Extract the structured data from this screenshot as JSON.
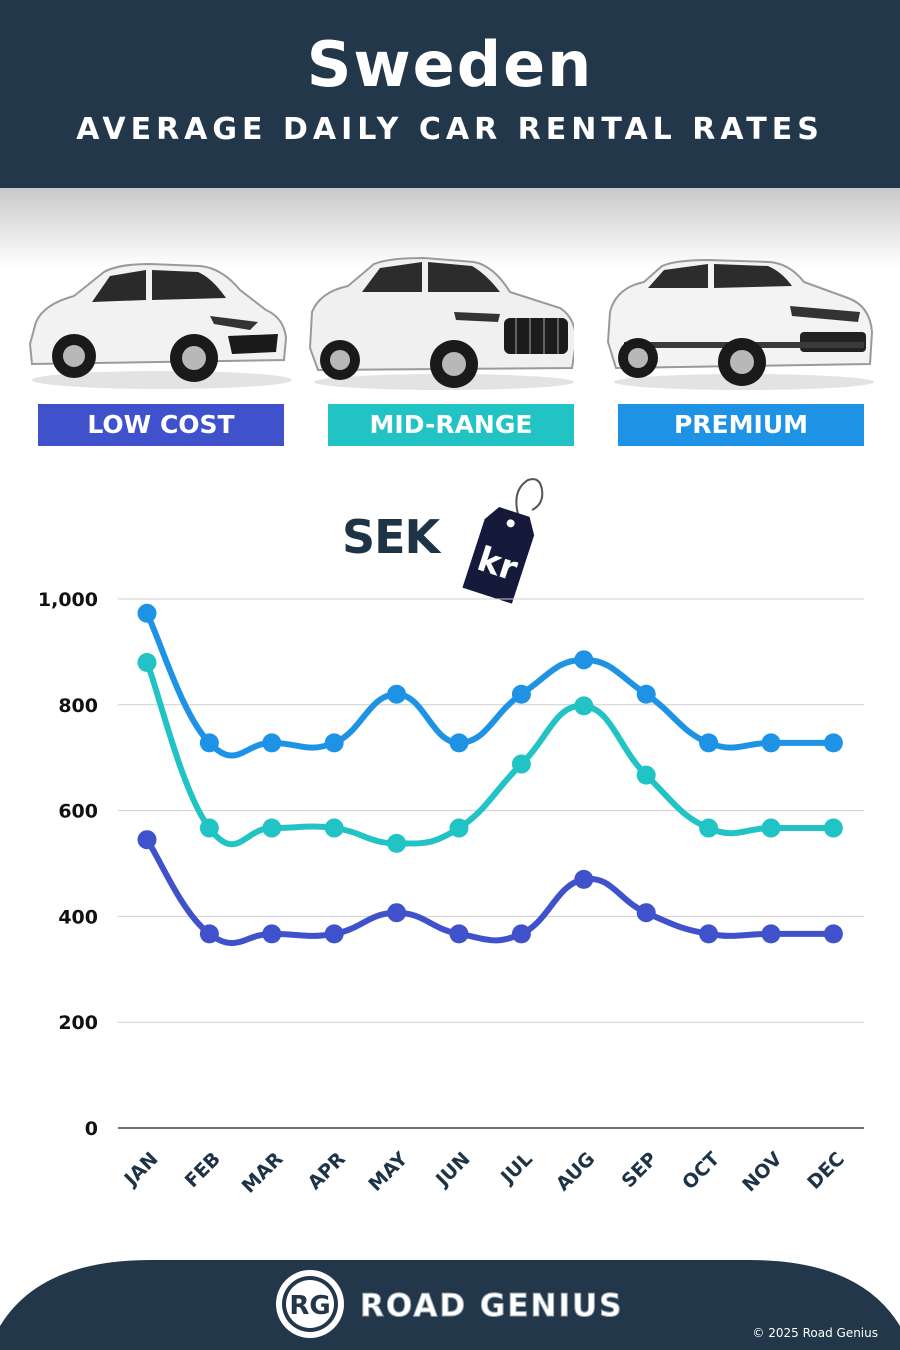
{
  "header": {
    "title": "Sweden",
    "subtitle": "AVERAGE DAILY CAR RENTAL RATES"
  },
  "categories": [
    {
      "label": "LOW COST",
      "color": "#3f52cc"
    },
    {
      "label": "MID-RANGE",
      "color": "#22c3c4"
    },
    {
      "label": "PREMIUM",
      "color": "#1e93e6"
    }
  ],
  "currency": {
    "code": "SEK",
    "symbol": "kr"
  },
  "chart_data": {
    "type": "line",
    "categories": [
      "JAN",
      "FEB",
      "MAR",
      "APR",
      "MAY",
      "JUN",
      "JUL",
      "AUG",
      "SEP",
      "OCT",
      "NOV",
      "DEC"
    ],
    "ylim": [
      0,
      1000
    ],
    "yticks": [
      0,
      200,
      400,
      600,
      800,
      1000
    ],
    "ytick_labels": [
      "0",
      "200",
      "400",
      "600",
      "800",
      "1,000"
    ],
    "grid": true,
    "series": [
      {
        "name": "PREMIUM",
        "color": "#1e93e6",
        "values": [
          973,
          728,
          728,
          728,
          820,
          728,
          820,
          885,
          820,
          728,
          728,
          728
        ]
      },
      {
        "name": "MID-RANGE",
        "color": "#22c3c4",
        "values": [
          880,
          567,
          567,
          567,
          538,
          567,
          688,
          798,
          667,
          567,
          567,
          567
        ]
      },
      {
        "name": "LOW COST",
        "color": "#3f52cc",
        "values": [
          545,
          367,
          367,
          367,
          407,
          367,
          367,
          470,
          407,
          367,
          367,
          367
        ]
      }
    ]
  },
  "footer": {
    "logo_mark": "RG",
    "brand": "ROAD GENIUS",
    "copyright": "© 2025 Road Genius"
  }
}
